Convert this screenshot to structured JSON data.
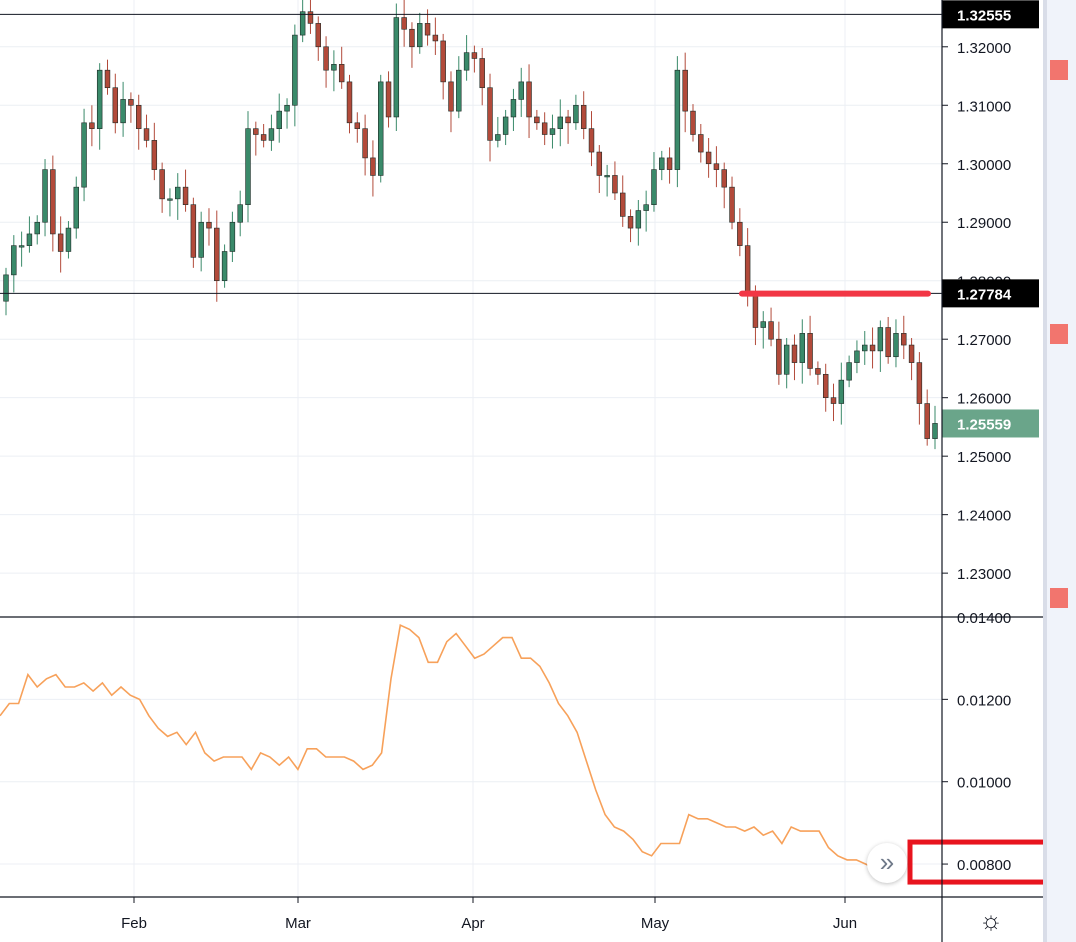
{
  "chart_data": [
    {
      "type": "candlestick",
      "title": "",
      "x_tick_labels": [
        "Feb",
        "Mar",
        "Apr",
        "May",
        "Jun"
      ],
      "y_tick_labels": [
        "1.32000",
        "1.31000",
        "1.30000",
        "1.29000",
        "1.28000",
        "1.27000",
        "1.26000",
        "1.25000",
        "1.24000",
        "1.23000"
      ],
      "ylim": [
        1.2225,
        1.328
      ],
      "grid": true,
      "horizontal_levels": [
        {
          "label": "1.32555",
          "value": 1.32555
        },
        {
          "label": "1.27784",
          "value": 1.27784
        }
      ],
      "highlight_segment": {
        "value": 1.2778,
        "color": "#f23645"
      },
      "last_price": {
        "label": "1.25559",
        "value": 1.25559
      },
      "colors": {
        "up": "#3a8a6a",
        "down": "#b24a3a",
        "last_price_tag": "#6aa58a",
        "level_tag": "#000000"
      },
      "ohlc": []
    },
    {
      "type": "line",
      "title": "",
      "y_tick_labels": [
        "0.01400",
        "0.01200",
        "0.01000",
        "0.00800"
      ],
      "ylim": [
        0.0072,
        0.014
      ],
      "grid": true,
      "line_color": "#f7a15a",
      "highlighted_label": "0.00800",
      "highlight_box_color": "#e8141e",
      "values": [
        0.0116,
        0.0119,
        0.0119,
        0.0126,
        0.0123,
        0.0125,
        0.0126,
        0.0123,
        0.0123,
        0.0124,
        0.0122,
        0.0124,
        0.0121,
        0.0123,
        0.0121,
        0.012,
        0.0116,
        0.0113,
        0.0111,
        0.0112,
        0.0109,
        0.0112,
        0.0107,
        0.0105,
        0.0106,
        0.0106,
        0.0106,
        0.0103,
        0.0107,
        0.0106,
        0.0104,
        0.0106,
        0.0103,
        0.0108,
        0.0108,
        0.0106,
        0.0106,
        0.0106,
        0.0105,
        0.0103,
        0.0104,
        0.0107,
        0.0125,
        0.0138,
        0.0137,
        0.0135,
        0.0129,
        0.0129,
        0.0134,
        0.0136,
        0.0133,
        0.013,
        0.0131,
        0.0133,
        0.0135,
        0.0135,
        0.013,
        0.013,
        0.0128,
        0.0124,
        0.0119,
        0.0116,
        0.0112,
        0.0105,
        0.0098,
        0.0092,
        0.0089,
        0.0088,
        0.0086,
        0.0083,
        0.0082,
        0.0085,
        0.0085,
        0.0085,
        0.0092,
        0.0091,
        0.0091,
        0.009,
        0.0089,
        0.0089,
        0.0088,
        0.0089,
        0.0087,
        0.0088,
        0.0085,
        0.0089,
        0.0088,
        0.0088,
        0.0088,
        0.0084,
        0.0082,
        0.0081,
        0.0081,
        0.008,
        0.0079
      ]
    }
  ],
  "icons": {
    "scroll_right": "double-chevron-right-icon",
    "settings": "gear-icon",
    "flag": "flag-icon"
  },
  "glyphs": {
    "scroll_right": "»",
    "settings": "☼"
  }
}
